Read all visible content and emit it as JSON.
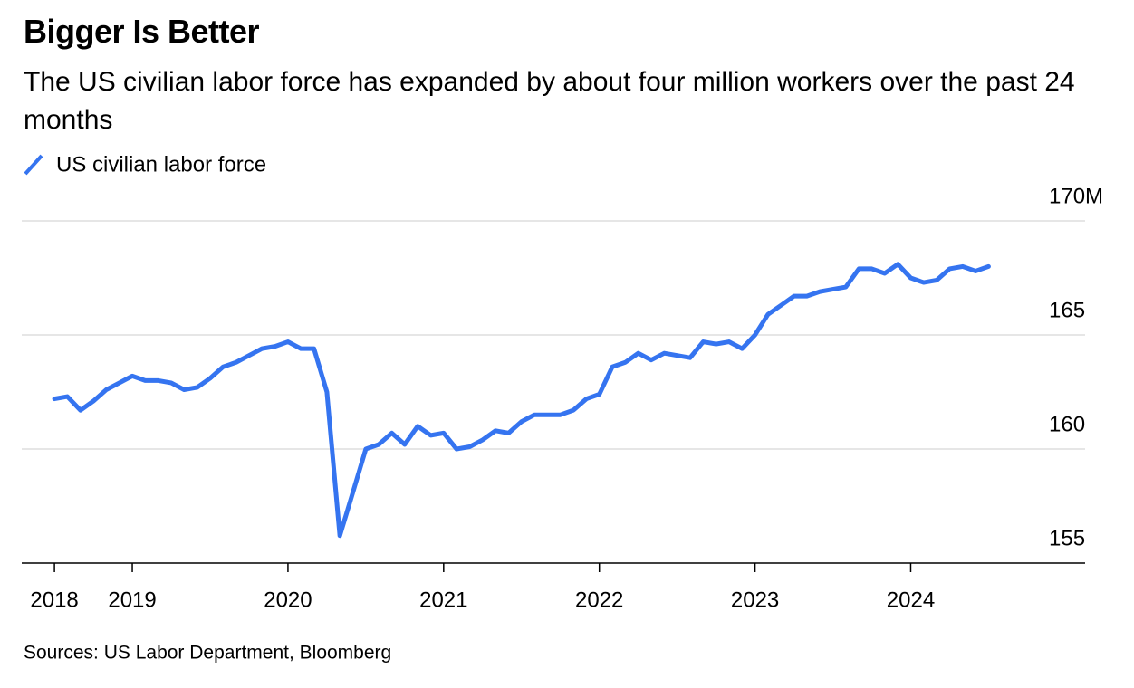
{
  "chart_data": {
    "type": "line",
    "title": "Bigger Is Better",
    "subtitle": "The US civilian labor force has expanded by about four million workers over the past 24 months",
    "source": "Sources: US Labor Department, Bloomberg",
    "x": [
      2018.5,
      2018.583,
      2018.667,
      2018.75,
      2018.833,
      2018.917,
      2019.0,
      2019.083,
      2019.167,
      2019.25,
      2019.333,
      2019.417,
      2019.5,
      2019.583,
      2019.667,
      2019.75,
      2019.833,
      2019.917,
      2020.0,
      2020.083,
      2020.167,
      2020.25,
      2020.333,
      2020.417,
      2020.5,
      2020.583,
      2020.667,
      2020.75,
      2020.833,
      2020.917,
      2021.0,
      2021.083,
      2021.167,
      2021.25,
      2021.333,
      2021.417,
      2021.5,
      2021.583,
      2021.667,
      2021.75,
      2021.833,
      2021.917,
      2022.0,
      2022.083,
      2022.167,
      2022.25,
      2022.333,
      2022.417,
      2022.5,
      2022.583,
      2022.667,
      2022.75,
      2022.833,
      2022.917,
      2023.0,
      2023.083,
      2023.167,
      2023.25,
      2023.333,
      2023.417,
      2023.5,
      2023.583,
      2023.667,
      2023.75,
      2023.833,
      2023.917,
      2024.0,
      2024.083,
      2024.167,
      2024.25,
      2024.333,
      2024.417,
      2024.5
    ],
    "series": [
      {
        "name": "US civilian labor force",
        "color": "#3574f0",
        "values": [
          162.2,
          162.3,
          161.7,
          162.1,
          162.6,
          162.9,
          163.2,
          163.0,
          163.0,
          162.9,
          162.6,
          162.7,
          163.1,
          163.6,
          163.8,
          164.1,
          164.4,
          164.5,
          164.7,
          164.4,
          164.4,
          162.5,
          156.2,
          158.1,
          160.0,
          160.2,
          160.7,
          160.2,
          161.0,
          160.6,
          160.7,
          160.0,
          160.1,
          160.4,
          160.8,
          160.7,
          161.2,
          161.5,
          161.5,
          161.5,
          161.7,
          162.2,
          162.4,
          163.6,
          163.8,
          164.2,
          163.9,
          164.2,
          164.1,
          164.0,
          164.7,
          164.6,
          164.7,
          164.4,
          165.0,
          165.9,
          166.3,
          166.7,
          166.7,
          166.9,
          167.0,
          167.1,
          167.9,
          167.9,
          167.7,
          168.1,
          167.5,
          167.3,
          167.4,
          167.9,
          168.0,
          167.8,
          168.0
        ]
      }
    ],
    "xlim": [
      2018.29,
      2025.12
    ],
    "xticks": [
      {
        "value": 2018.5,
        "label": "2018"
      },
      2019,
      2020,
      2021,
      2022,
      2023,
      2024
    ],
    "ylim": [
      155,
      170
    ],
    "yticks": [
      155,
      160,
      165,
      {
        "value": 170,
        "label": "170M"
      }
    ],
    "grid": true
  }
}
